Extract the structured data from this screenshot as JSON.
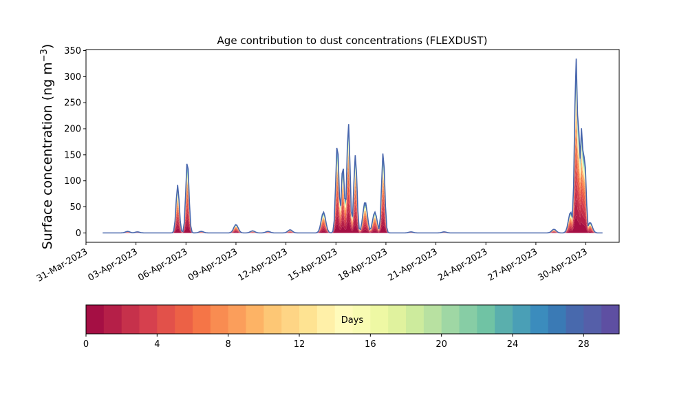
{
  "chart_data": [
    {
      "type": "area",
      "stacked": true,
      "title": "Age contribution to dust concentrations (FLEXDUST)",
      "ylabel_main": "Surface concentration (ng m",
      "ylabel_sup": "−3",
      "ylabel_close": ")",
      "xlabel": "",
      "xlim": [
        "2023-03-31",
        "2023-05-02"
      ],
      "ylim": [
        -18,
        352
      ],
      "xticks": [
        "31-Mar-2023",
        "03-Apr-2023",
        "06-Apr-2023",
        "09-Apr-2023",
        "12-Apr-2023",
        "15-Apr-2023",
        "18-Apr-2023",
        "21-Apr-2023",
        "24-Apr-2023",
        "27-Apr-2023",
        "30-Apr-2023"
      ],
      "xtick_dates": [
        "2023-03-31",
        "2023-04-03",
        "2023-04-06",
        "2023-04-09",
        "2023-04-12",
        "2023-04-15",
        "2023-04-18",
        "2023-04-21",
        "2023-04-24",
        "2023-04-27",
        "2023-04-30"
      ],
      "yticks": [
        "0",
        "50",
        "100",
        "150",
        "200",
        "250",
        "300",
        "350"
      ],
      "ytick_values": [
        0,
        50,
        100,
        150,
        200,
        250,
        300,
        350
      ],
      "grid": false,
      "legend": "none",
      "data_start": "2023-04-01",
      "data_end": "2023-05-01",
      "total_peaks": [
        [
          "2023-04-01",
          0
        ],
        [
          "2023-04-02",
          0
        ],
        [
          "2023-04-02T12:00",
          3
        ],
        [
          "2023-04-03T02:00",
          2
        ],
        [
          "2023-04-05T12:00",
          92
        ],
        [
          "2023-04-06T02:00",
          140
        ],
        [
          "2023-04-06T22:00",
          3
        ],
        [
          "2023-04-09T00:00",
          16
        ],
        [
          "2023-04-10T00:00",
          4
        ],
        [
          "2023-04-10T22:00",
          3
        ],
        [
          "2023-04-12T06:00",
          6
        ],
        [
          "2023-04-14T06:00",
          40
        ],
        [
          "2023-04-15T02:00",
          172
        ],
        [
          "2023-04-15T10:00",
          130
        ],
        [
          "2023-04-15T18:00",
          211
        ],
        [
          "2023-04-16T04:00",
          150
        ],
        [
          "2023-04-16T18:00",
          60
        ],
        [
          "2023-04-17T08:00",
          40
        ],
        [
          "2023-04-17T20:00",
          155
        ],
        [
          "2023-04-19T12:00",
          2
        ],
        [
          "2023-04-21T12:00",
          2
        ],
        [
          "2023-04-28T02:00",
          7
        ],
        [
          "2023-04-29T02:00",
          40
        ],
        [
          "2023-04-29T10:00",
          335
        ],
        [
          "2023-04-29T14:00",
          195
        ],
        [
          "2023-04-29T18:00",
          203
        ],
        [
          "2023-04-29T22:00",
          150
        ],
        [
          "2023-04-30T06:00",
          20
        ],
        [
          "2023-04-30T12:00",
          0
        ],
        [
          "2023-05-01",
          0
        ]
      ]
    },
    {
      "type": "heatmap",
      "colorbar": true,
      "label": "Days",
      "range": [
        0,
        30
      ],
      "bins": 30,
      "ticks": [
        "0",
        "4",
        "8",
        "12",
        "16",
        "20",
        "24",
        "28"
      ],
      "tick_values": [
        0,
        4,
        8,
        12,
        16,
        20,
        24,
        28
      ],
      "colors": [
        "#a50f44",
        "#b51f48",
        "#c6314b",
        "#d6404e",
        "#e2514a",
        "#ec6146",
        "#f57547",
        "#f98c51",
        "#fb9e5b",
        "#fdb365",
        "#fdc775",
        "#fed585",
        "#fee392",
        "#fff0a8",
        "#fffbbb",
        "#f8fbb2",
        "#eef8a4",
        "#e0f29e",
        "#cdeb9d",
        "#b8e1a1",
        "#9fd7a4",
        "#87cda5",
        "#70c3a4",
        "#5aafad",
        "#4a9fb6",
        "#3b8cbd",
        "#3a7ab5",
        "#4869ad",
        "#555fa9",
        "#5e4fa2"
      ]
    }
  ]
}
